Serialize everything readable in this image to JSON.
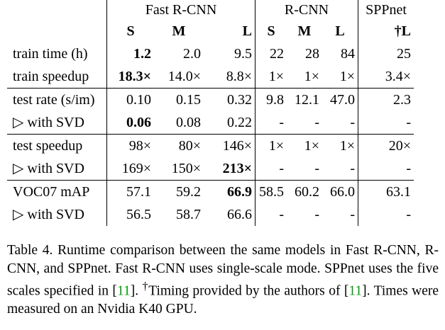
{
  "table": {
    "group_headers": [
      "Fast R-CNN",
      "R-CNN",
      "SPPnet"
    ],
    "sub_headers": [
      "S",
      "M",
      "L",
      "S",
      "M",
      "L",
      "†L"
    ],
    "rows": [
      {
        "label": "train time (h)",
        "cells": [
          "1.2",
          "2.0",
          "9.5",
          "22",
          "28",
          "84",
          "25"
        ],
        "bold": [
          0
        ]
      },
      {
        "label": "train speedup",
        "cells": [
          "18.3×",
          "14.0×",
          "8.8×",
          "1×",
          "1×",
          "1×",
          "3.4×"
        ],
        "bold": [
          0
        ]
      },
      {
        "label": "test rate (s/im)",
        "cells": [
          "0.10",
          "0.15",
          "0.32",
          "9.8",
          "12.1",
          "47.0",
          "2.3"
        ],
        "bold": []
      },
      {
        "label": "▷ with SVD",
        "cells": [
          "0.06",
          "0.08",
          "0.22",
          "-",
          "-",
          "-",
          "-"
        ],
        "bold": [
          0
        ]
      },
      {
        "label": "test speedup",
        "cells": [
          "98×",
          "80×",
          "146×",
          "1×",
          "1×",
          "1×",
          "20×"
        ],
        "bold": []
      },
      {
        "label": "▷ with SVD",
        "cells": [
          "169×",
          "150×",
          "213×",
          "-",
          "-",
          "-",
          "-"
        ],
        "bold": [
          2
        ]
      },
      {
        "label": "VOC07 mAP",
        "cells": [
          "57.1",
          "59.2",
          "66.9",
          "58.5",
          "60.2",
          "66.0",
          "63.1"
        ],
        "bold": [
          2
        ]
      },
      {
        "label": "▷ with SVD",
        "cells": [
          "56.5",
          "58.7",
          "66.6",
          "-",
          "-",
          "-",
          "-"
        ],
        "bold": []
      }
    ]
  },
  "caption": {
    "part1": "Table 4. Runtime comparison between the same models in Fast R-CNN, R-CNN, and SPPnet. Fast R-CNN uses single-scale mode. SPPnet uses the five scales specified in [",
    "ref1": "11",
    "part2": "]. ",
    "dagger": "†",
    "part3": "Timing provided by the authors of [",
    "ref2": "11",
    "part4": "]. Times were measured on an Nvidia K40 GPU."
  }
}
